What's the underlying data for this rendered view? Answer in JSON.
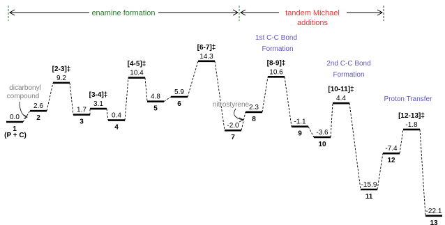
{
  "header": {
    "left_phase": "enamine formation",
    "right_phase_line1": "tandem Michael",
    "right_phase_line2": "additions"
  },
  "annotations": {
    "dicarbonyl_line1": "dicarbonyl",
    "dicarbonyl_line2": "compound",
    "nitrostyrene": "nitrostyrene",
    "cc1_line1": "1st C-C Bond",
    "cc1_line2": "Formation",
    "cc2_line1": "2nd C-C Bond",
    "cc2_line2": "Formation",
    "proton_transfer": "Proton Transfer",
    "start_note": "(P + C)"
  },
  "colors": {
    "enamine": "#2e7d32",
    "michael": "#e53935",
    "annotation_blue": "#5b56c7",
    "annotation_gray": "#808080",
    "divider": "#2e7d32"
  },
  "chart_data": {
    "type": "energy-profile",
    "states": [
      {
        "label": "1",
        "value": 0.0,
        "value_text": "0.0",
        "kind": "intermediate"
      },
      {
        "label": "2",
        "value": 2.6,
        "value_text": "2.6",
        "kind": "intermediate"
      },
      {
        "label": "[2-3]‡",
        "value": 9.2,
        "value_text": "9.2",
        "kind": "ts"
      },
      {
        "label": "3",
        "value": 1.7,
        "value_text": "1.7",
        "kind": "intermediate"
      },
      {
        "label": "[3-4]‡",
        "value": 3.1,
        "value_text": "3.1",
        "kind": "ts"
      },
      {
        "label": "4",
        "value": 0.4,
        "value_text": "0.4",
        "kind": "intermediate"
      },
      {
        "label": "[4-5]‡",
        "value": 10.4,
        "value_text": "10.4",
        "kind": "ts"
      },
      {
        "label": "5",
        "value": 4.8,
        "value_text": "4.8",
        "kind": "intermediate"
      },
      {
        "label": "6",
        "value": 5.9,
        "value_text": "5.9",
        "kind": "intermediate"
      },
      {
        "label": "[6-7]‡",
        "value": 14.3,
        "value_text": "14.3",
        "kind": "ts"
      },
      {
        "label": "7",
        "value": -2.0,
        "value_text": "-2.0",
        "kind": "intermediate"
      },
      {
        "label": "8",
        "value": 2.3,
        "value_text": "2.3",
        "kind": "intermediate"
      },
      {
        "label": "[8-9]‡",
        "value": 10.6,
        "value_text": "10.6",
        "kind": "ts"
      },
      {
        "label": "9",
        "value": -1.1,
        "value_text": "-1.1",
        "kind": "intermediate"
      },
      {
        "label": "10",
        "value": -3.6,
        "value_text": "-3.6",
        "kind": "intermediate"
      },
      {
        "label": "[10-11]‡",
        "value": 4.4,
        "value_text": "4.4",
        "kind": "ts"
      },
      {
        "label": "11",
        "value": -15.9,
        "value_text": "-15.9",
        "kind": "intermediate"
      },
      {
        "label": "12",
        "value": -7.4,
        "value_text": "-7.4",
        "kind": "intermediate"
      },
      {
        "label": "[12-13]‡",
        "value": -1.8,
        "value_text": "-1.8",
        "kind": "ts"
      },
      {
        "label": "13",
        "value": -22.1,
        "value_text": "-22.1",
        "kind": "intermediate"
      }
    ]
  }
}
